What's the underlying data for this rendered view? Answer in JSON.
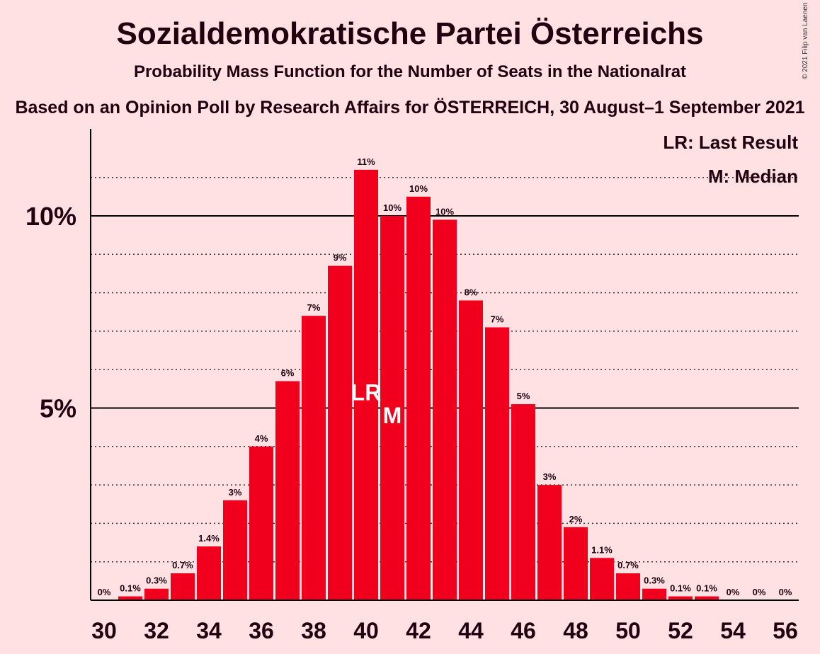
{
  "chart_data": {
    "type": "bar",
    "title": "Sozialdemokratische Partei Österreichs",
    "subtitle": "Probability Mass Function for the Number of Seats in the Nationalrat",
    "subtitle2": "Based on an Opinion Poll by Research Affairs for ÖSTERREICH, 30 August–1 September 2021",
    "copyright": "© 2021 Filip van Laenen",
    "x": [
      30,
      31,
      32,
      33,
      34,
      35,
      36,
      37,
      38,
      39,
      40,
      41,
      42,
      43,
      44,
      45,
      46,
      47,
      48,
      49,
      50,
      51,
      52,
      53,
      54,
      55,
      56
    ],
    "values": [
      0,
      0.1,
      0.3,
      0.7,
      1.4,
      2.6,
      4.0,
      5.7,
      7.4,
      8.7,
      11.2,
      10.0,
      10.5,
      9.9,
      7.8,
      7.1,
      5.1,
      3.0,
      1.9,
      1.1,
      0.7,
      0.3,
      0.1,
      0.1,
      0,
      0,
      0
    ],
    "labels": [
      "0%",
      "0.1%",
      "0.3%",
      "0.7%",
      "1.4%",
      "3%",
      "4%",
      "6%",
      "7%",
      "9%",
      "11%",
      "10%",
      "10%",
      "10%",
      "8%",
      "7%",
      "5%",
      "3%",
      "2%",
      "1.1%",
      "0.7%",
      "0.3%",
      "0.1%",
      "0.1%",
      "0%",
      "0%",
      "0%"
    ],
    "x_tick_labels": [
      "30",
      "32",
      "34",
      "36",
      "38",
      "40",
      "42",
      "44",
      "46",
      "48",
      "50",
      "52",
      "54",
      "56"
    ],
    "y_tick_labels": [
      "5%",
      "10%"
    ],
    "ylim": [
      0,
      12.3
    ],
    "grid": "dotted every 1%, solid at 5% and 10%",
    "last_result": {
      "seat": 40,
      "marker": "LR"
    },
    "median": {
      "seat": 41,
      "marker": "M"
    },
    "legend": {
      "position": "top-right",
      "items": [
        "LR: Last Result",
        "M: Median"
      ]
    },
    "colors": {
      "bar": "#f0001c",
      "background": "#ffe1e4",
      "text": "#220010"
    }
  }
}
